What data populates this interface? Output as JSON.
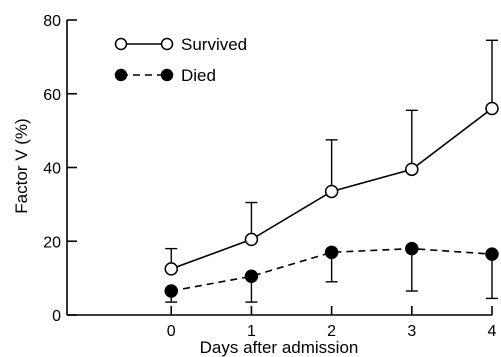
{
  "chart_data": {
    "type": "line",
    "xlabel": "Days after admission",
    "ylabel": "Factor V (%)",
    "x": [
      0,
      1,
      2,
      3,
      4
    ],
    "xticks": [
      "0",
      "1",
      "2",
      "3",
      "4"
    ],
    "yticks": [
      "0",
      "20",
      "40",
      "60",
      "80"
    ],
    "xlim": [
      -1.3,
      4
    ],
    "ylim": [
      0,
      80
    ],
    "legend_position": "top-left",
    "grid": false,
    "series": [
      {
        "name": "Survived",
        "marker": "open-circle",
        "line": "solid",
        "values": [
          12.5,
          20.5,
          33.5,
          39.5,
          56
        ],
        "error_upper": [
          18,
          30.5,
          47.5,
          55.5,
          74.5
        ],
        "error_direction": "up"
      },
      {
        "name": "Died",
        "marker": "filled-circle",
        "line": "dashed",
        "values": [
          6.5,
          10.5,
          17,
          18,
          16.5
        ],
        "error_upper": [
          3.5,
          3.5,
          9,
          6.5,
          4.5
        ],
        "error_direction": "down"
      }
    ]
  },
  "colors": {
    "ink": "#000000",
    "background": "#ffffff"
  }
}
